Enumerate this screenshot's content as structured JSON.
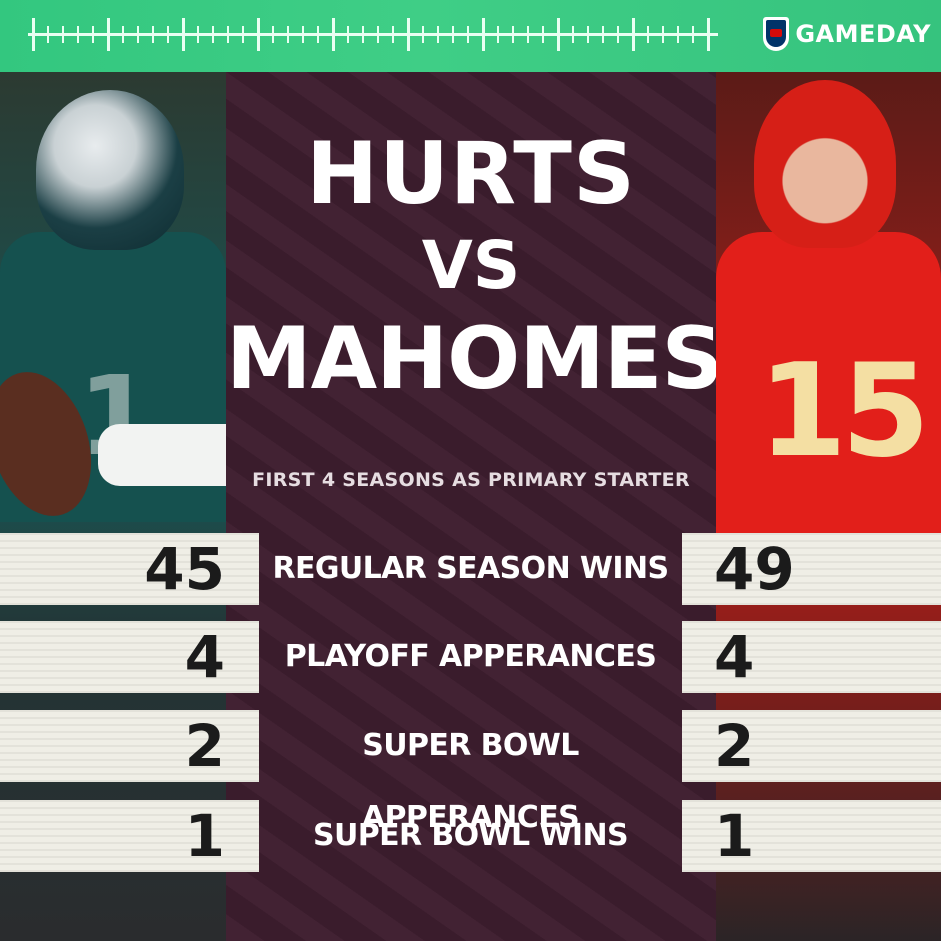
{
  "brand": {
    "logo_text": "GAMEDAY",
    "logo_icon": "nfl-shield-icon",
    "banner_color": "#3fce86"
  },
  "colors": {
    "center_panel": "#3d1d2e",
    "stat_strip": "#efeee6",
    "eagles_green": "#15514f",
    "chiefs_red": "#e21f1a"
  },
  "headline": {
    "player_left": "HURTS",
    "versus": "VS",
    "player_right": "MAHOMES"
  },
  "subtitle": "FIRST 4 SEASONS AS PRIMARY STARTER",
  "players": {
    "left": {
      "jersey_number": "1"
    },
    "right": {
      "jersey_number": "15"
    }
  },
  "stats": [
    {
      "label": "REGULAR SEASON WINS",
      "left": "45",
      "right": "49"
    },
    {
      "label": "PLAYOFF APPERANCES",
      "left": "4",
      "right": "4"
    },
    {
      "label": "SUPER BOWL APPERANCES",
      "left": "2",
      "right": "2"
    },
    {
      "label": "SUPER BOWL WINS",
      "left": "1",
      "right": "1"
    }
  ]
}
